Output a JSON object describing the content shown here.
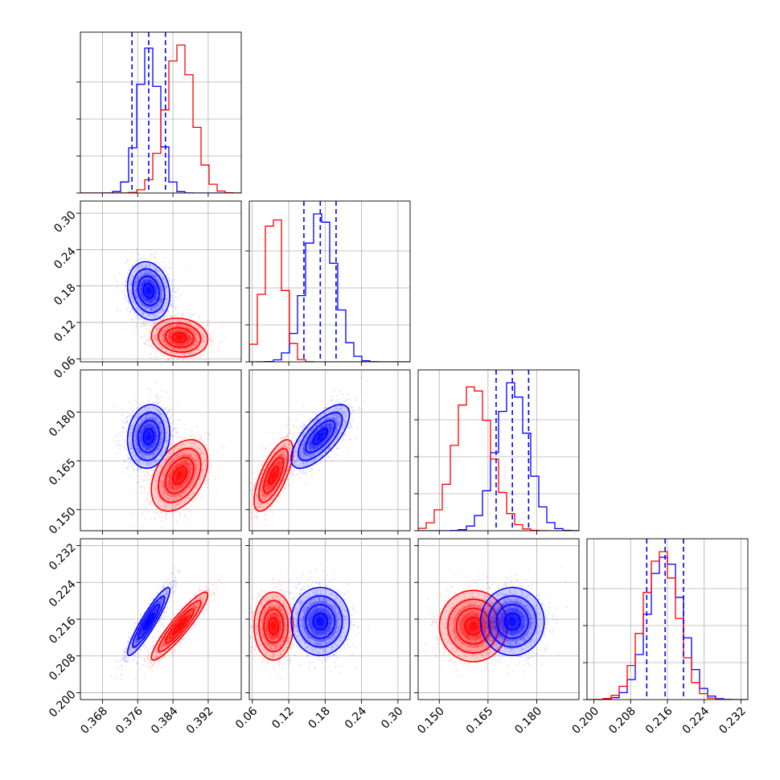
{
  "chart_data": {
    "type": "corner",
    "parameters": [
      {
        "name": "",
        "range": [
          0.363,
          0.3995
        ],
        "ticks": [
          "0.368",
          "0.376",
          "0.384",
          "0.392"
        ]
      },
      {
        "name": "",
        "range": [
          0.055,
          0.32
        ],
        "ticks": [
          "0.06",
          "0.12",
          "0.18",
          "0.24",
          "0.30"
        ]
      },
      {
        "name": "",
        "range": [
          0.1435,
          0.193
        ],
        "ticks": [
          "0.150",
          "0.165",
          "0.180"
        ]
      },
      {
        "name": "",
        "range": [
          0.1985,
          0.2335
        ],
        "ticks": [
          "0.200",
          "0.208",
          "0.216",
          "0.224",
          "0.232"
        ]
      }
    ],
    "series": [
      {
        "name": "",
        "color": "#0000ff",
        "mean": [
          0.3785,
          0.172,
          0.1725,
          0.2155
        ],
        "sd": [
          0.0024,
          0.024,
          0.0049,
          0.0037
        ],
        "quantiles_16_50_84": [
          [
            0.3747,
            0.3785,
            0.3823
          ],
          [
            0.145,
            0.172,
            0.198
          ],
          [
            0.1675,
            0.1725,
            0.1775
          ],
          [
            0.2115,
            0.2155,
            0.2195
          ]
        ]
      },
      {
        "name": "",
        "color": "#ff0000",
        "mean": [
          0.3855,
          0.095,
          0.1605,
          0.2145
        ],
        "sd": [
          0.0032,
          0.016,
          0.0055,
          0.0037
        ]
      }
    ],
    "correlations": {
      "blue": {
        "0-1": -0.15,
        "0-2": 0.1,
        "0-3": 0.92,
        "1-2": 0.7,
        "1-3": 0.0,
        "2-3": 0.0
      },
      "red": {
        "0-1": -0.1,
        "0-2": 0.4,
        "0-3": 0.92,
        "1-2": 0.7,
        "1-3": 0.0,
        "2-3": 0.0
      }
    },
    "grid": true,
    "quantile_lines": "dashed"
  }
}
